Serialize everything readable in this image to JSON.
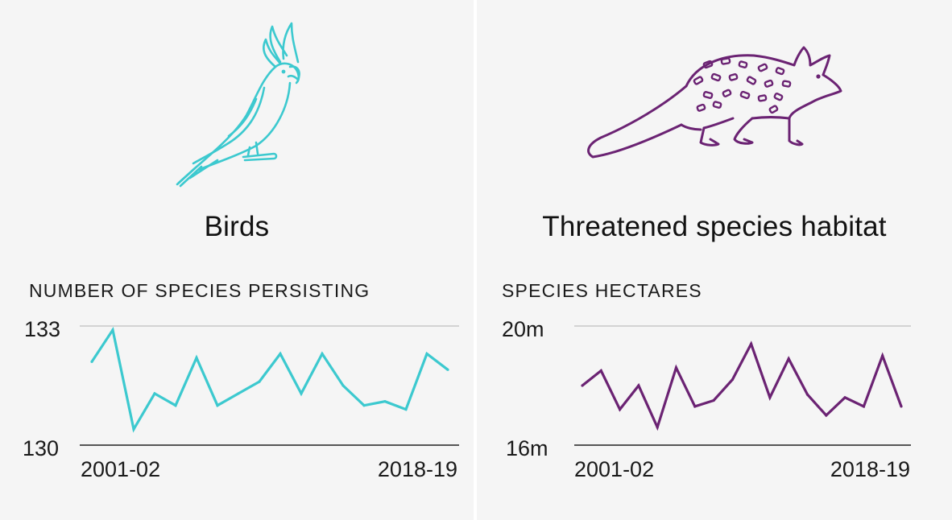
{
  "panels": {
    "birds": {
      "title": "Birds",
      "chart_label": "NUMBER OF SPECIES PERSISTING",
      "icon": "cockatoo-icon",
      "color": "#3cc9cf"
    },
    "habitat": {
      "title": "Threatened species habitat",
      "chart_label": "SPECIES HECTARES",
      "icon": "quoll-icon",
      "color": "#6b2373"
    }
  },
  "chart_data": [
    {
      "type": "line",
      "title": "Birds",
      "ylabel": "NUMBER OF SPECIES PERSISTING",
      "ylim": [
        130,
        133
      ],
      "ytick_labels": [
        "133",
        "130"
      ],
      "x_start_label": "2001-02",
      "x_end_label": "2018-19",
      "color": "#3cc9cf",
      "series": [
        {
          "name": "Birds",
          "values": [
            132.1,
            132.9,
            130.4,
            131.3,
            131.0,
            132.2,
            131.0,
            131.3,
            131.6,
            132.3,
            131.3,
            132.3,
            131.5,
            131.0,
            131.1,
            130.9,
            132.3,
            131.9
          ]
        }
      ]
    },
    {
      "type": "line",
      "title": "Threatened species habitat",
      "ylabel": "SPECIES HECTARES",
      "ylim": [
        16,
        20
      ],
      "ytick_labels": [
        "20m",
        "16m"
      ],
      "x_start_label": "2001-02",
      "x_end_label": "2018-19",
      "color": "#6b2373",
      "series": [
        {
          "name": "Species hectares",
          "values": [
            18.0,
            18.5,
            17.2,
            18.0,
            16.6,
            18.6,
            17.3,
            17.5,
            18.2,
            19.4,
            17.6,
            18.9,
            17.7,
            17.0,
            17.6,
            17.3,
            19.0,
            17.3
          ]
        }
      ]
    }
  ]
}
